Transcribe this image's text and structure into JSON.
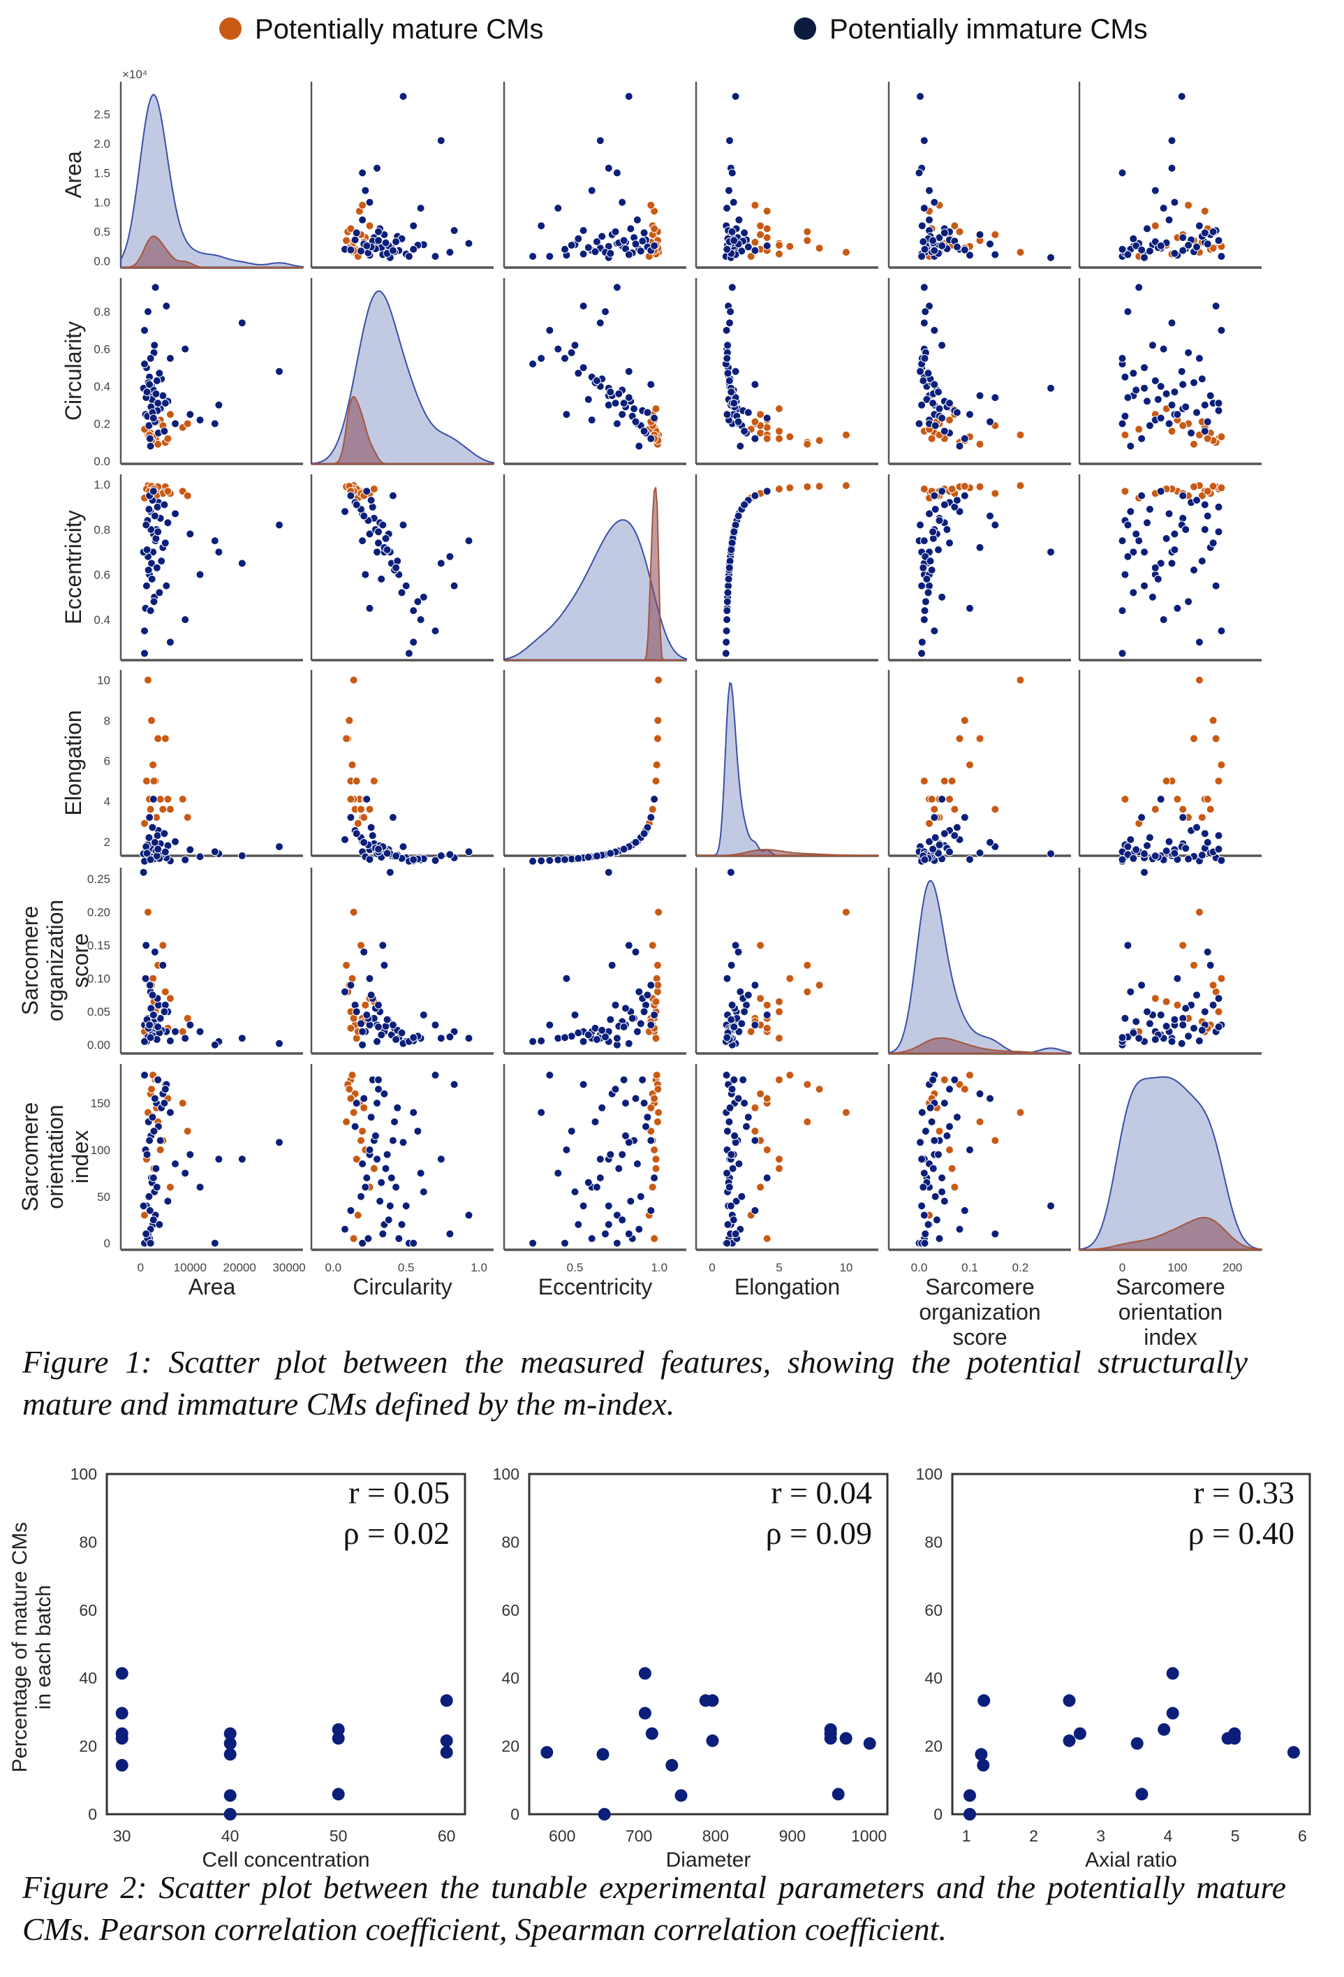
{
  "legend": {
    "mature_label": "Potentially mature CMs",
    "immature_label": "Potentially immature CMs",
    "mature_color": "#c95a14",
    "immature_color": "#0b1f7a"
  },
  "captions": {
    "figure1": "Figure 1: Scatter plot between the measured features, showing the potential structurally mature and immature CMs defined by the m-index.",
    "figure2": "Figure 2: Scatter plot between the tunable experimental parameters and the potentially mature CMs. Pearson correlation coefficient, Spearman correlation coefficient."
  },
  "chart_data": [
    {
      "type": "scatter-matrix",
      "diagonal": "kde",
      "hue_order": [
        "mature",
        "immature"
      ],
      "colors": {
        "mature": "#c95a14",
        "immature": "#0b1f7a",
        "kde_mature_fill": "#8a4a5a",
        "kde_mature_line": "#a5553a",
        "kde_immature_fill": "#9aa6d0",
        "kde_immature_line": "#3a4ea6"
      },
      "area_offset_label": "×10⁴",
      "columns": [
        "Area",
        "Circularity",
        "Eccentricity",
        "Elongation",
        "Sarcomere organization score",
        "Sarcomere orientation index"
      ],
      "variables": [
        {
          "label_lines": [
            "Area"
          ],
          "xlim": [
            -4000,
            32800
          ],
          "ylim": [
            -1100,
            30500
          ],
          "xticks": [
            {
              "v": 0,
              "label": "0"
            },
            {
              "v": 10000,
              "label": "10000"
            },
            {
              "v": 20000,
              "label": "20000"
            },
            {
              "v": 30000,
              "label": "30000"
            }
          ],
          "yticks": [
            {
              "v": 0,
              "label": "0.0"
            },
            {
              "v": 5000,
              "label": "0.5"
            },
            {
              "v": 10000,
              "label": "1.0"
            },
            {
              "v": 15000,
              "label": "1.5"
            },
            {
              "v": 20000,
              "label": "2.0"
            },
            {
              "v": 25000,
              "label": "2.5"
            }
          ]
        },
        {
          "label_lines": [
            "Circularity"
          ],
          "xlim": [
            -0.15,
            1.1
          ],
          "ylim": [
            -0.015,
            0.98
          ],
          "xticks": [
            {
              "v": 0,
              "label": "0.0"
            },
            {
              "v": 0.5,
              "label": "0.5"
            },
            {
              "v": 1.0,
              "label": "1.0"
            }
          ],
          "yticks": [
            {
              "v": 0,
              "label": "0.0"
            },
            {
              "v": 0.2,
              "label": "0.2"
            },
            {
              "v": 0.4,
              "label": "0.4"
            },
            {
              "v": 0.6,
              "label": "0.6"
            },
            {
              "v": 0.8,
              "label": "0.8"
            }
          ]
        },
        {
          "label_lines": [
            "Eccentricity"
          ],
          "xlim": [
            0.08,
            1.16
          ],
          "ylim": [
            0.22,
            1.045
          ],
          "xticks": [
            {
              "v": 0.5,
              "label": "0.5"
            },
            {
              "v": 1.0,
              "label": "1.0"
            }
          ],
          "yticks": [
            {
              "v": 0.4,
              "label": "0.4"
            },
            {
              "v": 0.6,
              "label": "0.6"
            },
            {
              "v": 0.8,
              "label": "0.8"
            },
            {
              "v": 1.0,
              "label": "1.0"
            }
          ]
        },
        {
          "label_lines": [
            "Elongation"
          ],
          "xlim": [
            -1.2,
            12.4
          ],
          "ylim": [
            1.3,
            10.5
          ],
          "xticks": [
            {
              "v": 0,
              "label": "0"
            },
            {
              "v": 5,
              "label": "5"
            },
            {
              "v": 10,
              "label": "10"
            }
          ],
          "yticks": [
            {
              "v": 2,
              "label": "2"
            },
            {
              "v": 4,
              "label": "4"
            },
            {
              "v": 6,
              "label": "6"
            },
            {
              "v": 8,
              "label": "8"
            },
            {
              "v": 10,
              "label": "10"
            }
          ]
        },
        {
          "label_lines": [
            "Sarcomere",
            "organization",
            "score"
          ],
          "xlim": [
            -0.06,
            0.3
          ],
          "ylim": [
            -0.013,
            0.267
          ],
          "xticks": [
            {
              "v": 0,
              "label": "0.0"
            },
            {
              "v": 0.1,
              "label": "0.1"
            },
            {
              "v": 0.2,
              "label": "0.2"
            }
          ],
          "yticks": [
            {
              "v": 0,
              "label": "0.00"
            },
            {
              "v": 0.05,
              "label": "0.05"
            },
            {
              "v": 0.1,
              "label": "0.10"
            },
            {
              "v": 0.15,
              "label": "0.15"
            },
            {
              "v": 0.2,
              "label": "0.20"
            },
            {
              "v": 0.25,
              "label": "0.25"
            }
          ]
        },
        {
          "label_lines": [
            "Sarcomere",
            "orientation",
            "index"
          ],
          "xlim": [
            -78,
            253
          ],
          "ylim": [
            -7,
            192
          ],
          "xticks": [
            {
              "v": 0,
              "label": "0"
            },
            {
              "v": 100,
              "label": "100"
            },
            {
              "v": 200,
              "label": "200"
            }
          ],
          "yticks": [
            {
              "v": 0,
              "label": "0"
            },
            {
              "v": 50,
              "label": "50"
            },
            {
              "v": 100,
              "label": "100"
            },
            {
              "v": 150,
              "label": "150"
            }
          ]
        }
      ],
      "points": {
        "mature": [
          [
            2000,
            0.15,
            0.96,
            3.6,
            0.03,
            160
          ],
          [
            3000,
            0.12,
            0.98,
            5.0,
            0.05,
            175
          ],
          [
            8500,
            0.18,
            0.97,
            4.1,
            0.02,
            150
          ],
          [
            9500,
            0.2,
            0.95,
            3.2,
            0.04,
            120
          ],
          [
            5000,
            0.1,
            0.99,
            7.1,
            0.08,
            170
          ],
          [
            1500,
            0.14,
            0.995,
            10.0,
            0.2,
            140
          ],
          [
            4000,
            0.22,
            0.97,
            4.1,
            0.06,
            100
          ],
          [
            1200,
            0.16,
            0.98,
            5.0,
            0.01,
            90
          ],
          [
            2500,
            0.13,
            0.985,
            5.8,
            0.1,
            180
          ],
          [
            6000,
            0.25,
            0.96,
            3.6,
            0.07,
            60
          ],
          [
            3500,
            0.09,
            0.99,
            7.1,
            0.12,
            130
          ],
          [
            800,
            0.17,
            0.94,
            2.9,
            0.02,
            30
          ],
          [
            2200,
            0.11,
            0.992,
            8.0,
            0.09,
            165
          ],
          [
            4500,
            0.19,
            0.96,
            3.6,
            0.15,
            110
          ],
          [
            1800,
            0.14,
            0.97,
            4.1,
            0.04,
            5
          ],
          [
            3200,
            0.21,
            0.95,
            3.2,
            0.035,
            145
          ],
          [
            2700,
            0.28,
            0.98,
            5.0,
            0.065,
            80
          ],
          [
            5500,
            0.12,
            0.97,
            4.1,
            0.025,
            155
          ]
        ],
        "immature": [
          [
            2500,
            0.35,
            0.7,
            1.4,
            0.02,
            20
          ],
          [
            1800,
            0.45,
            0.6,
            1.25,
            0.01,
            5
          ],
          [
            3200,
            0.3,
            0.8,
            1.67,
            0.03,
            150
          ],
          [
            1200,
            0.5,
            0.55,
            1.2,
            0.005,
            40
          ],
          [
            4000,
            0.28,
            0.85,
            1.9,
            0.04,
            110
          ],
          [
            2200,
            0.4,
            0.65,
            1.3,
            0.015,
            70
          ],
          [
            28000,
            0.48,
            0.82,
            1.75,
            0.002,
            108
          ],
          [
            20500,
            0.74,
            0.65,
            1.3,
            0.01,
            90
          ],
          [
            15800,
            0.3,
            0.7,
            1.4,
            0.005,
            90
          ],
          [
            15000,
            0.2,
            0.75,
            1.5,
            0.0,
            0
          ],
          [
            12000,
            0.22,
            0.6,
            1.25,
            0.02,
            60
          ],
          [
            10000,
            0.25,
            0.78,
            1.6,
            0.03,
            95
          ],
          [
            9000,
            0.6,
            0.4,
            1.1,
            0.01,
            75
          ],
          [
            6000,
            0.55,
            0.3,
            1.05,
            0.006,
            140
          ],
          [
            5200,
            0.83,
            0.55,
            1.2,
            0.02,
            170
          ],
          [
            3000,
            0.93,
            0.75,
            1.5,
            0.01,
            30
          ],
          [
            1500,
            0.8,
            0.68,
            1.36,
            0.012,
            10
          ],
          [
            800,
            0.7,
            0.35,
            1.07,
            0.03,
            180
          ],
          [
            2800,
            0.62,
            0.5,
            1.15,
            0.045,
            55
          ],
          [
            3600,
            0.15,
            0.92,
            2.55,
            0.06,
            125
          ],
          [
            2000,
            0.08,
            0.88,
            2.1,
            0.08,
            15
          ],
          [
            1000,
            0.25,
            0.45,
            1.12,
            0.1,
            100
          ],
          [
            4500,
            0.35,
            0.72,
            1.44,
            0.12,
            160
          ],
          [
            5500,
            0.32,
            0.83,
            1.8,
            0.05,
            45
          ],
          [
            7000,
            0.2,
            0.87,
            2.0,
            0.02,
            85
          ],
          [
            1600,
            0.42,
            0.62,
            1.27,
            0.025,
            130
          ],
          [
            2600,
            0.38,
            0.78,
            1.6,
            0.035,
            25
          ],
          [
            3400,
            0.27,
            0.9,
            2.3,
            0.07,
            175
          ],
          [
            2300,
            0.33,
            0.58,
            1.23,
            0.015,
            65
          ],
          [
            1900,
            0.12,
            0.95,
            3.2,
            0.09,
            35
          ],
          [
            800,
            0.52,
            0.25,
            1.03,
            0.005,
            0
          ],
          [
            2100,
            0.29,
            0.8,
            1.67,
            0.055,
            115
          ],
          [
            4200,
            0.44,
            0.66,
            1.33,
            0.022,
            145
          ],
          [
            3100,
            0.36,
            0.76,
            1.54,
            0.028,
            80
          ],
          [
            1400,
            0.24,
            0.84,
            1.84,
            0.04,
            5
          ],
          [
            2700,
            0.58,
            0.48,
            1.14,
            0.013,
            120
          ],
          [
            5000,
            0.31,
            0.74,
            1.49,
            0.06,
            165
          ],
          [
            1700,
            0.19,
            0.89,
            2.2,
            0.032,
            50
          ],
          [
            3800,
            0.47,
            0.52,
            1.17,
            0.018,
            20
          ],
          [
            2400,
            0.26,
            0.93,
            2.7,
            0.075,
            135
          ],
          [
            600,
            0.39,
            0.7,
            1.4,
            0.26,
            40
          ],
          [
            1100,
            0.34,
            0.82,
            1.75,
            0.15,
            10
          ],
          [
            2900,
            0.21,
            0.86,
            1.96,
            0.14,
            155
          ],
          [
            3300,
            0.43,
            0.63,
            1.29,
            0.008,
            60
          ],
          [
            1300,
            0.37,
            0.71,
            1.42,
            0.038,
            95
          ],
          [
            4800,
            0.16,
            0.91,
            2.4,
            0.05,
            150
          ],
          [
            2000,
            0.55,
            0.44,
            1.11,
            0.011,
            0
          ],
          [
            3500,
            0.31,
            0.79,
            1.63,
            0.027,
            175
          ],
          [
            1800,
            0.41,
            0.95,
            3.2,
            0.03,
            110
          ],
          [
            2600,
            0.23,
            0.97,
            4.1,
            0.045,
            70
          ]
        ]
      }
    },
    {
      "type": "scatter",
      "xlabel": "Cell concentration",
      "ylabel_lines": [
        "Percentage of mature CMs",
        "in each batch"
      ],
      "xlim": [
        28.6,
        61.7
      ],
      "ylim": [
        0,
        100
      ],
      "xticks": [
        "30",
        "40",
        "50",
        "60"
      ],
      "yticks": [
        "0",
        "20",
        "40",
        "60",
        "80",
        "100"
      ],
      "x": [
        30,
        30,
        30,
        30,
        30,
        40,
        40,
        40,
        40,
        40,
        50,
        50,
        50,
        60,
        60,
        60
      ],
      "y": [
        41.4,
        29.7,
        23.7,
        22.3,
        14.4,
        23.7,
        20.8,
        17.6,
        5.5,
        0,
        24.9,
        22.3,
        5.9,
        33.4,
        21.6,
        18.2
      ],
      "annotations": [
        "r = 0.05",
        "ρ = 0.02"
      ]
    },
    {
      "type": "scatter",
      "xlabel": "Diameter",
      "xlim": [
        557,
        1024
      ],
      "ylim": [
        0,
        100
      ],
      "xticks": [
        "600",
        "700",
        "800",
        "900",
        "1000"
      ],
      "yticks": [
        "0",
        "20",
        "40",
        "60",
        "80",
        "100"
      ],
      "x": [
        580,
        653,
        655,
        708,
        708,
        717,
        743,
        755,
        787,
        796,
        796,
        950,
        950,
        950,
        960,
        970,
        1001
      ],
      "y": [
        18.2,
        17.6,
        0,
        41.4,
        29.7,
        23.7,
        14.4,
        5.5,
        33.4,
        33.4,
        21.6,
        24.9,
        23.7,
        22.3,
        5.9,
        22.3,
        20.8
      ],
      "annotations": [
        "r = 0.04",
        "ρ = 0.09"
      ]
    },
    {
      "type": "scatter",
      "xlabel": "Axial ratio",
      "xlim": [
        0.79,
        6.11
      ],
      "ylim": [
        0,
        100
      ],
      "xticks": [
        "1",
        "2",
        "3",
        "4",
        "5",
        "6"
      ],
      "yticks": [
        "0",
        "20",
        "40",
        "60",
        "80",
        "100"
      ],
      "x": [
        1.05,
        1.05,
        1.22,
        1.25,
        1.26,
        2.53,
        2.53,
        2.69,
        3.54,
        3.61,
        3.94,
        4.07,
        4.07,
        4.89,
        4.99,
        4.99,
        5.87
      ],
      "y": [
        5.5,
        0,
        17.6,
        14.4,
        33.4,
        33.4,
        21.6,
        23.7,
        20.8,
        5.9,
        24.9,
        41.4,
        29.7,
        22.3,
        23.7,
        22.3,
        18.2
      ],
      "annotations": [
        "r = 0.33",
        "ρ = 0.40"
      ]
    }
  ]
}
